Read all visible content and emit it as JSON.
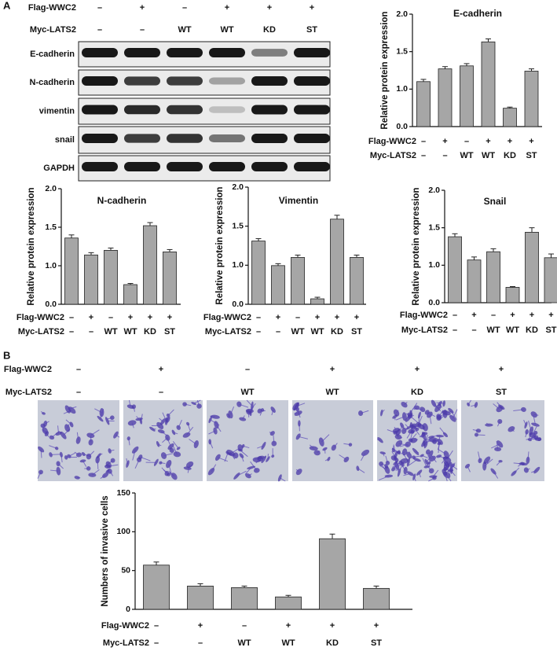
{
  "panel_labels": {
    "a": "A",
    "b": "B"
  },
  "blot": {
    "conditions": [
      {
        "name": "Flag-WWC2",
        "labels": [
          "–",
          "+",
          "–",
          "+",
          "+",
          "+"
        ]
      },
      {
        "name": "Myc-LATS2",
        "labels": [
          "–",
          "–",
          "WT",
          "WT",
          "KD",
          "ST"
        ]
      }
    ],
    "proteins": [
      "E-cadherin",
      "N-cadherin",
      "vimentin",
      "snail",
      "GAPDH"
    ]
  },
  "invasion_images": {
    "conditions": [
      {
        "name": "Flag-WWC2",
        "labels": [
          "–",
          "+",
          "–",
          "+",
          "+",
          "+"
        ]
      },
      {
        "name": "Myc-LATS2",
        "labels": [
          "–",
          "–",
          "WT",
          "WT",
          "KD",
          "ST"
        ]
      }
    ]
  },
  "chart_data": [
    {
      "type": "bar",
      "title": "E-cadherin",
      "y_label": "Relative protein expression",
      "conditions": [
        {
          "name": "Flag-WWC2",
          "labels": [
            "–",
            "+",
            "–",
            "+",
            "+",
            "+"
          ]
        },
        {
          "name": "Myc-LATS2",
          "labels": [
            "–",
            "–",
            "WT",
            "WT",
            "KD",
            "ST"
          ]
        }
      ],
      "values": [
        1.1,
        1.27,
        1.31,
        1.63,
        0.49,
        1.24
      ],
      "errors": [
        0.03,
        0.03,
        0.03,
        0.04,
        0.03,
        0.03
      ],
      "color": "#a6a6a6",
      "ylim": [
        0,
        2
      ],
      "yticks": [
        {
          "value": 0,
          "label": "0.0"
        },
        {
          "value": 1,
          "label": "1.0"
        },
        1.5,
        {
          "value": 2,
          "label": "2.0"
        }
      ]
    },
    {
      "type": "bar",
      "title": "N-cadherin",
      "y_label": "Relative protein expression",
      "conditions": [
        {
          "name": "Flag-WWC2",
          "labels": [
            "–",
            "+",
            "–",
            "+",
            "+",
            "+"
          ]
        },
        {
          "name": "Myc-LATS2",
          "labels": [
            "–",
            "–",
            "WT",
            "WT",
            "KD",
            "ST"
          ]
        }
      ],
      "values": [
        1.36,
        1.14,
        1.2,
        0.51,
        1.52,
        1.18
      ],
      "errors": [
        0.04,
        0.03,
        0.03,
        0.03,
        0.04,
        0.03
      ],
      "color": "#a6a6a6",
      "ylim": [
        0,
        2
      ],
      "yticks": [
        {
          "value": 0,
          "label": "0.0"
        },
        {
          "value": 1,
          "label": "1.0"
        },
        1.5,
        {
          "value": 2,
          "label": "2.0"
        }
      ]
    },
    {
      "type": "bar",
      "title": "Vimentin",
      "y_label": "Relative protein expression",
      "conditions": [
        {
          "name": "Flag-WWC2",
          "labels": [
            "–",
            "+",
            "–",
            "+",
            "+",
            "+"
          ]
        },
        {
          "name": "Myc-LATS2",
          "labels": [
            "–",
            "–",
            "WT",
            "WT",
            "KD",
            "ST"
          ]
        }
      ],
      "values": [
        1.31,
        0.99,
        1.1,
        0.14,
        1.59,
        1.1
      ],
      "errors": [
        0.03,
        0.03,
        0.03,
        0.04,
        0.05,
        0.03
      ],
      "color": "#a6a6a6",
      "ylim": [
        0,
        2
      ],
      "yticks": [
        {
          "value": 0,
          "label": "0.0"
        },
        {
          "value": 1,
          "label": "1.0"
        },
        1.5,
        {
          "value": 2,
          "label": "2.0"
        }
      ]
    },
    {
      "type": "bar",
      "title": "Snail",
      "y_label": "Relative protein expression",
      "conditions": [
        {
          "name": "Flag-WWC2",
          "labels": [
            "–",
            "+",
            "–",
            "+",
            "+",
            "+"
          ]
        },
        {
          "name": "Myc-LATS2",
          "labels": [
            "–",
            "–",
            "WT",
            "WT",
            "KD",
            "ST"
          ]
        }
      ],
      "values": [
        1.38,
        1.07,
        1.18,
        0.41,
        1.44,
        1.1
      ],
      "errors": [
        0.04,
        0.04,
        0.04,
        0.02,
        0.06,
        0.05
      ],
      "color": "#a6a6a6",
      "ylim": [
        0,
        2
      ],
      "yticks": [
        {
          "value": 0,
          "label": "0.0"
        },
        {
          "value": 1,
          "label": "1.0"
        },
        1.5,
        {
          "value": 2,
          "label": "2.0"
        }
      ]
    },
    {
      "type": "bar",
      "y_label": "Numbers of invasive cells",
      "conditions": [
        {
          "name": "Flag-WWC2",
          "labels": [
            "–",
            "+",
            "–",
            "+",
            "+",
            "+"
          ]
        },
        {
          "name": "Myc-LATS2",
          "labels": [
            "–",
            "–",
            "WT",
            "WT",
            "KD",
            "ST"
          ]
        }
      ],
      "values": [
        57,
        30,
        28,
        16,
        91,
        27
      ],
      "errors": [
        4,
        3,
        2,
        2,
        6,
        3
      ],
      "color": "#a6a6a6",
      "ylim": [
        0,
        150
      ],
      "yticks": [
        0,
        50,
        100,
        150
      ]
    }
  ]
}
